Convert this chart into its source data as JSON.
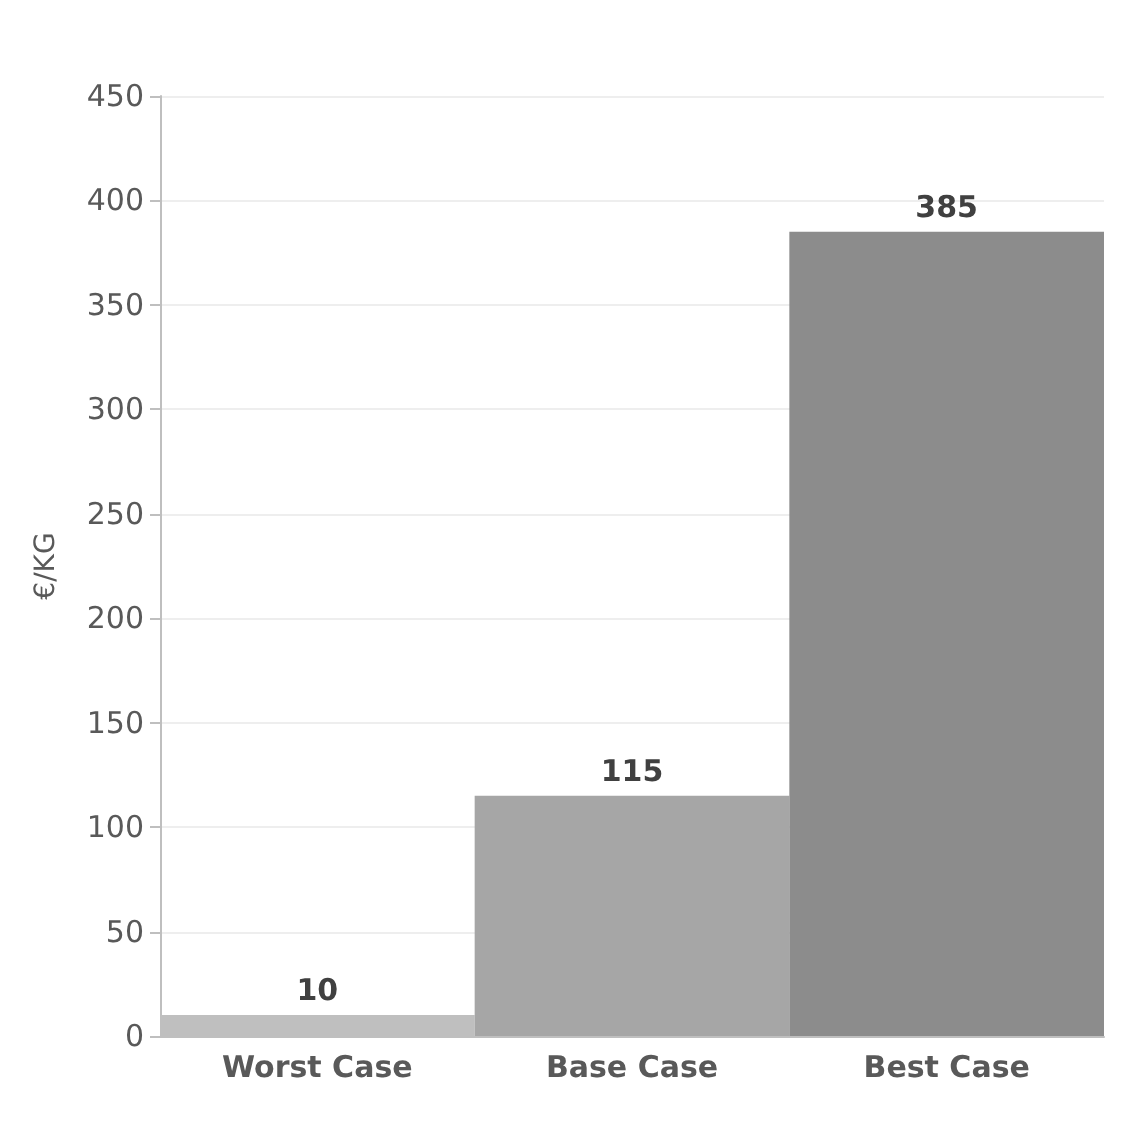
{
  "chart_data": {
    "type": "bar",
    "ylabel": "€/KG",
    "categories": [
      "Worst Case",
      "Base Case",
      "Best Case"
    ],
    "values": [
      10,
      115,
      385
    ],
    "colors": [
      "#bfbfbf",
      "#a6a6a6",
      "#8c8c8c"
    ],
    "ylim": [
      0,
      450
    ],
    "yticks": [
      0,
      50,
      100,
      150,
      200,
      250,
      300,
      350,
      400,
      450
    ],
    "grid": "y",
    "data_labels": true
  }
}
